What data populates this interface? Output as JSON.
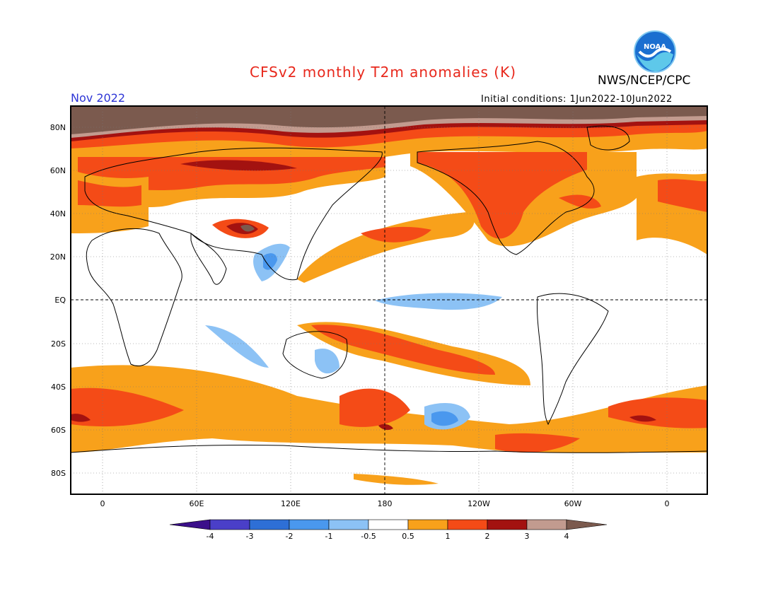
{
  "header": {
    "title": "CFSv2 monthly T2m anomalies (K)",
    "agency": "NWS/NCEP/CPC",
    "period": "Nov 2022",
    "initial_conditions": "Initial conditions: 1Jun2022-10Jun2022",
    "logo_text": "NOAA"
  },
  "map": {
    "projection": "cylindrical",
    "lat_labels": [
      "80N",
      "60N",
      "40N",
      "20N",
      "EQ",
      "20S",
      "40S",
      "60S",
      "80S"
    ],
    "lon_labels": [
      "0",
      "60E",
      "120E",
      "180",
      "120W",
      "60W",
      "0"
    ],
    "colors": {
      "lt_neg4": "#3b0f8a",
      "neg4_neg3": "#4a3fc8",
      "neg3_neg2": "#2e6fd6",
      "neg2_neg1": "#4a98ee",
      "neg1_neg05": "#8cc2f5",
      "neutral": "#ffffff",
      "p05_1": "#f8a11b",
      "p1_2": "#f44b17",
      "p2_3": "#a31210",
      "p3_4": "#c29b8f",
      "gt_4": "#7b5a4e"
    }
  },
  "colorbar": {
    "labels": [
      "-4",
      "-3",
      "-2",
      "-1",
      "-0.5",
      "0.5",
      "1",
      "2",
      "3",
      "4"
    ]
  }
}
